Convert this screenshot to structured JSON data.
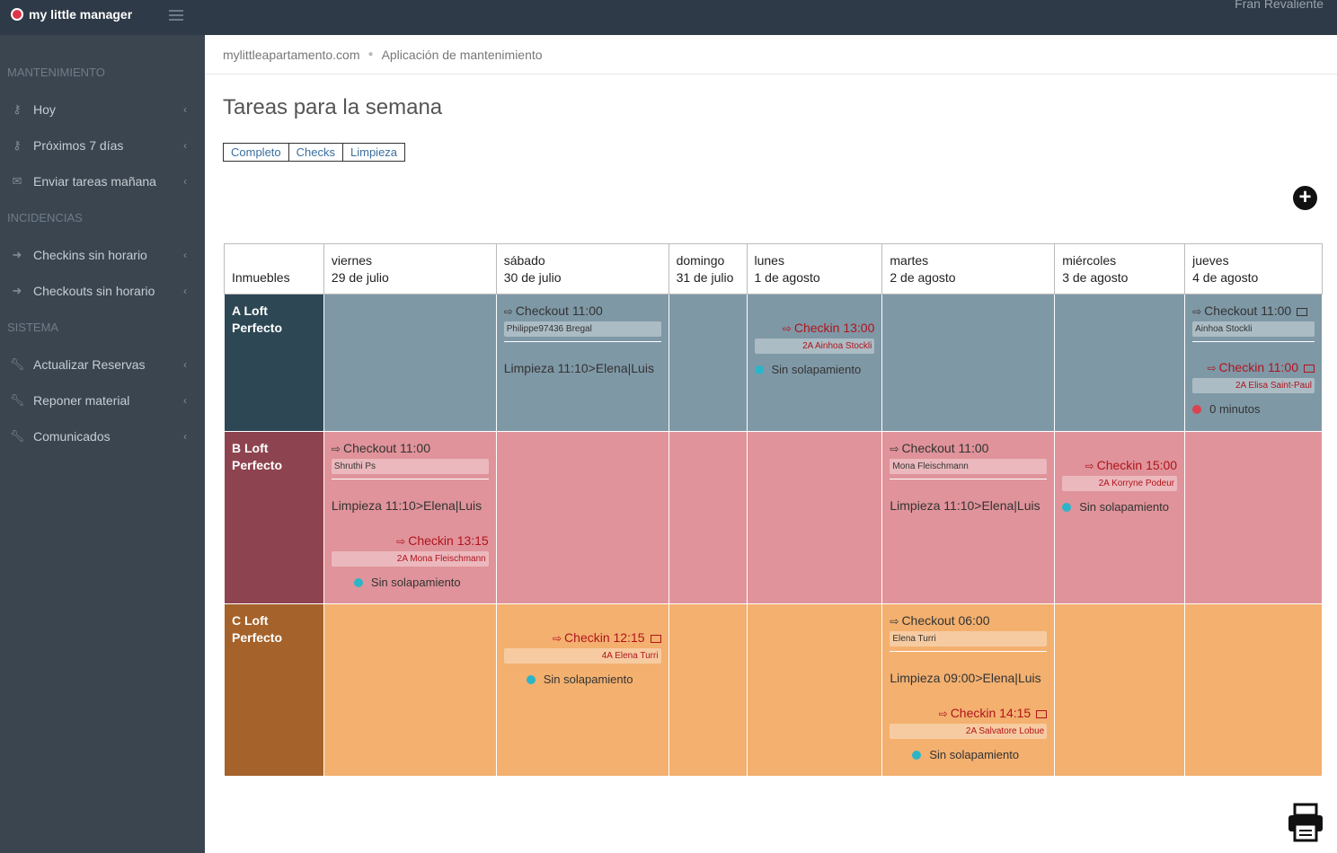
{
  "app": {
    "name": "my little manager",
    "user": "Fran Revaliente"
  },
  "sidebar": {
    "sections": [
      {
        "title": "MANTENIMIENTO",
        "items": [
          {
            "label": "Hoy",
            "icon": "key-icon"
          },
          {
            "label": "Próximos 7 días",
            "icon": "key-icon"
          },
          {
            "label": "Enviar tareas mañana",
            "icon": "envelope-icon"
          }
        ]
      },
      {
        "title": "INCIDENCIAS",
        "items": [
          {
            "label": "Checkins sin horario",
            "icon": "sign-in-icon"
          },
          {
            "label": "Checkouts sin horario",
            "icon": "sign-out-icon"
          }
        ]
      },
      {
        "title": "SISTEMA",
        "items": [
          {
            "label": "Actualizar Reservas",
            "icon": "wrench-icon"
          },
          {
            "label": "Reponer material",
            "icon": "wrench-icon"
          },
          {
            "label": "Comunicados",
            "icon": "wrench-icon"
          }
        ]
      }
    ]
  },
  "breadcrumb": {
    "site": "mylittleapartamento.com",
    "page": "Aplicación de mantenimiento"
  },
  "page": {
    "title": "Tareas para la semana"
  },
  "filters": [
    "Completo",
    "Checks",
    "Limpieza"
  ],
  "table": {
    "first_header": "Inmuebles",
    "days": [
      {
        "name": "viernes",
        "date": "29 de julio"
      },
      {
        "name": "sábado",
        "date": "30 de julio"
      },
      {
        "name": "domingo",
        "date": "31 de julio"
      },
      {
        "name": "lunes",
        "date": "1 de agosto"
      },
      {
        "name": "martes",
        "date": "2 de agosto"
      },
      {
        "name": "miércoles",
        "date": "3 de agosto"
      },
      {
        "name": "jueves",
        "date": "4 de agosto"
      }
    ],
    "rows": [
      {
        "name": "A Loft Perfecto",
        "cells": {
          "sat": {
            "checkout": "Checkout 11:00",
            "guest": "Philippe97436 Bregal",
            "limpieza": "Limpieza 11:10>Elena|Luis"
          },
          "mon": {
            "checkin": "Checkin 13:00",
            "guest": "2A Ainhoa Stockli",
            "status": "Sin solapamiento"
          },
          "thu": {
            "checkout": "Checkout 11:00",
            "guest": "Ainhoa Stockli",
            "checkin": "Checkin 11:00",
            "guest2": "2A Elisa Saint-Paul",
            "status": "0 minutos"
          }
        }
      },
      {
        "name": "B Loft Perfecto",
        "cells": {
          "fri": {
            "checkout": "Checkout 11:00",
            "guest": "Shruthi Ps",
            "limpieza": "Limpieza 11:10>Elena|Luis",
            "checkin": "Checkin 13:15",
            "guest2": "2A Mona Fleischmann",
            "status": "Sin solapamiento"
          },
          "tue": {
            "checkout": "Checkout 11:00",
            "guest": "Mona Fleischmann",
            "limpieza": "Limpieza 11:10>Elena|Luis"
          },
          "wed": {
            "checkin": "Checkin 15:00",
            "guest": "2A Korryne Podeur",
            "status": "Sin solapamiento"
          }
        }
      },
      {
        "name": "C Loft Perfecto",
        "cells": {
          "sat": {
            "checkin": "Checkin 12:15",
            "guest": "4A Elena Turri",
            "status": "Sin solapamiento"
          },
          "tue": {
            "checkout": "Checkout 06:00",
            "guest": "Elena Turri",
            "limpieza": "Limpieza 09:00>Elena|Luis",
            "checkin": "Checkin 14:15",
            "guest2": "2A Salvatore Lobue",
            "status": "Sin solapamiento"
          }
        }
      }
    ]
  },
  "actions": {
    "add": "+"
  }
}
